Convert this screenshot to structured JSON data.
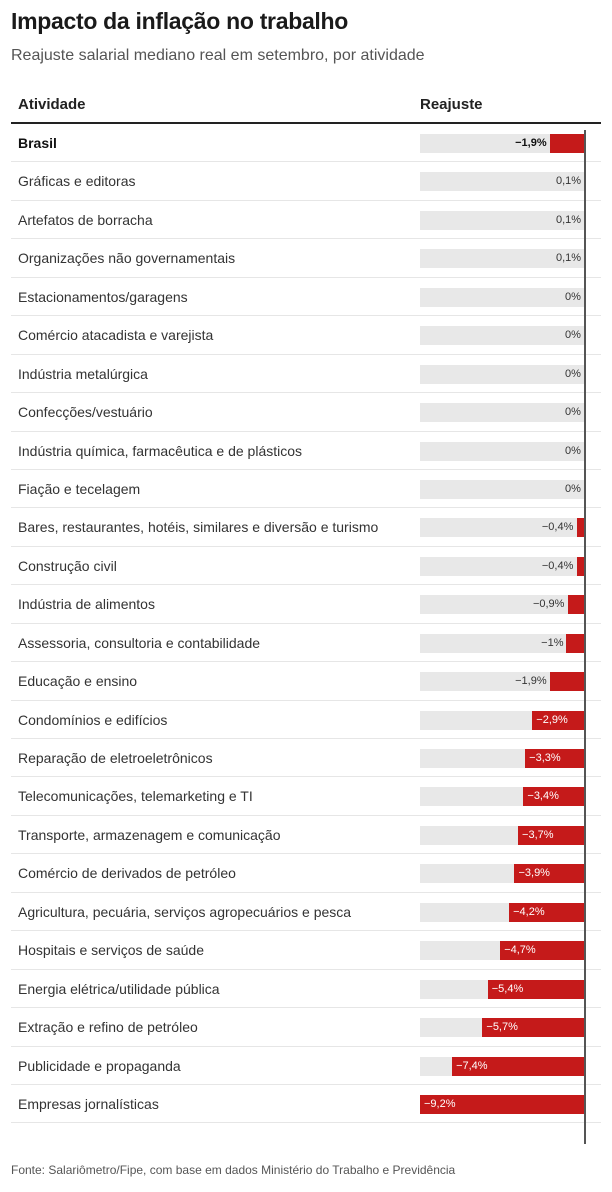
{
  "title": "Impacto da inflação no trabalho",
  "subtitle": "Reajuste salarial mediano real em setembro, por atividade",
  "header": {
    "activity": "Atividade",
    "value": "Reajuste"
  },
  "source": "Fonte: Salariômetro/Fipe, com base em dados Ministério do Trabalho e Previdência",
  "colors": {
    "bar": "#c51a1a",
    "track": "#e8e8e8"
  },
  "chart_data": {
    "type": "bar",
    "orientation": "horizontal",
    "xlim": [
      -9.2,
      0.1
    ],
    "categories": [
      "Brasil",
      "Gráficas e editoras",
      "Artefatos de borracha",
      "Organizações não governamentais",
      "Estacionamentos/garagens",
      "Comércio atacadista e varejista",
      "Indústria metalúrgica",
      "Confecções/vestuário",
      "Indústria química, farmacêutica e de plásticos",
      "Fiação e tecelagem",
      "Bares, restaurantes, hotéis, similares e diversão e turismo",
      "Construção civil",
      "Indústria de alimentos",
      "Assessoria, consultoria e contabilidade",
      "Educação e ensino",
      "Condomínios e edifícios",
      "Reparação de eletroeletrônicos",
      "Telecomunicações, telemarketing e TI",
      "Transporte, armazenagem e comunicação",
      "Comércio de derivados de petróleo",
      "Agricultura, pecuária, serviços agropecuários e pesca",
      "Hospitais e serviços de saúde",
      "Energia elétrica/utilidade pública",
      "Extração e refino de petróleo",
      "Publicidade e propaganda",
      "Empresas jornalísticas"
    ],
    "values": [
      -1.9,
      0.1,
      0.1,
      0.1,
      0,
      0,
      0,
      0,
      0,
      0,
      -0.4,
      -0.4,
      -0.9,
      -1,
      -1.9,
      -2.9,
      -3.3,
      -3.4,
      -3.7,
      -3.9,
      -4.2,
      -4.7,
      -5.4,
      -5.7,
      -7.4,
      -9.2
    ],
    "labels": [
      "−1,9%",
      "0,1%",
      "0,1%",
      "0,1%",
      "0%",
      "0%",
      "0%",
      "0%",
      "0%",
      "0%",
      "−0,4%",
      "−0,4%",
      "−0,9%",
      "−1%",
      "−1,9%",
      "−2,9%",
      "−3,3%",
      "−3,4%",
      "−3,7%",
      "−3,9%",
      "−4,2%",
      "−4,7%",
      "−5,4%",
      "−5,7%",
      "−7,4%",
      "−9,2%"
    ],
    "highlight": "Brasil"
  }
}
